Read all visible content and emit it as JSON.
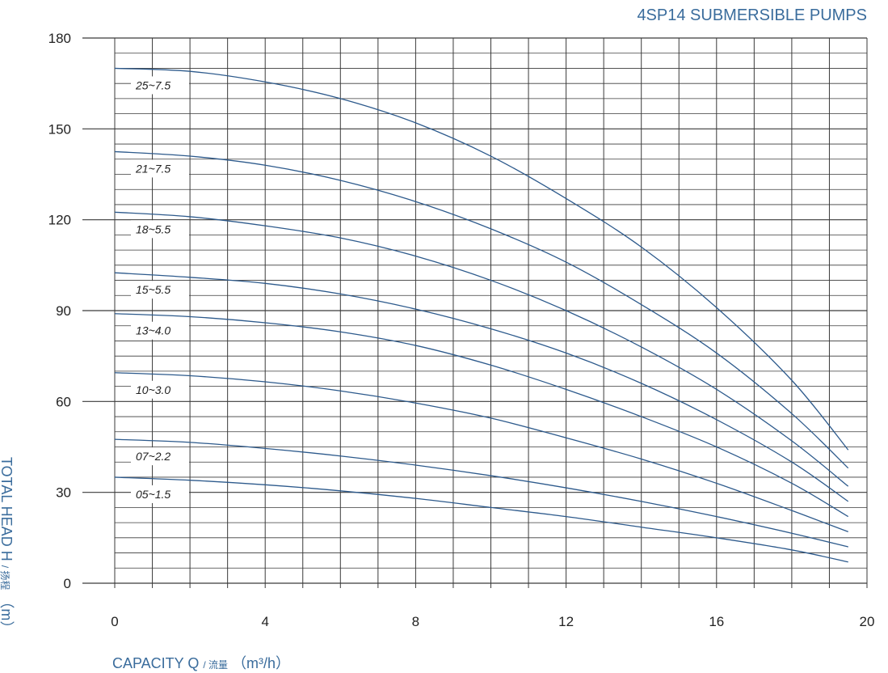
{
  "chart_data": {
    "type": "line",
    "title": "4SP14 SUBMERSIBLE PUMPS",
    "xlabel": "CAPACITY Q / 流量（m³/h）",
    "xlabel_parts": {
      "main": "CAPACITY Q",
      "cn": "/ 流量",
      "unit": "（m³/h）"
    },
    "ylabel": "TOTAL HEAD H / 扬程（m）",
    "ylabel_parts": {
      "main": "TOTAL HEAD H",
      "cn": "/ 扬程",
      "unit": "（m）"
    },
    "xlim": [
      0,
      20
    ],
    "ylim": [
      0,
      180
    ],
    "x_ticks": [
      0,
      4,
      8,
      12,
      16,
      20
    ],
    "y_ticks": [
      0,
      30,
      60,
      90,
      120,
      150,
      180
    ],
    "grid": true,
    "grid_x_step": 1,
    "grid_y_step": 5,
    "colors": {
      "curve": "#2d5a8c",
      "grid": "#3a3a3a",
      "title": "#3a6c9c"
    },
    "series": [
      {
        "name": "25~7.5",
        "x": [
          0,
          2,
          4,
          6,
          8,
          10,
          12,
          14,
          16,
          18,
          19.5
        ],
        "y": [
          170,
          169,
          165.5,
          160,
          152,
          141,
          127,
          111,
          91,
          67,
          44
        ]
      },
      {
        "name": "21~7.5",
        "x": [
          0,
          2,
          4,
          6,
          8,
          10,
          12,
          14,
          16,
          18,
          19.5
        ],
        "y": [
          142.5,
          141,
          138,
          133,
          126,
          117,
          106,
          92,
          76,
          56,
          38
        ]
      },
      {
        "name": "18~5.5",
        "x": [
          0,
          2,
          4,
          6,
          8,
          10,
          12,
          14,
          16,
          18,
          19.5
        ],
        "y": [
          122.5,
          121,
          118,
          114,
          108,
          100,
          90,
          78,
          64,
          47,
          32
        ]
      },
      {
        "name": "15~5.5",
        "x": [
          0,
          2,
          4,
          6,
          8,
          10,
          12,
          14,
          16,
          18,
          19.5
        ],
        "y": [
          102.5,
          101,
          99,
          95.5,
          90.5,
          84,
          76,
          66,
          54,
          40,
          27
        ]
      },
      {
        "name": "13~4.0",
        "x": [
          0,
          2,
          4,
          6,
          8,
          10,
          12,
          14,
          16,
          18,
          19.5
        ],
        "y": [
          89,
          88,
          86,
          83,
          78.5,
          72,
          64,
          55,
          45,
          33,
          22
        ]
      },
      {
        "name": "10~3.0",
        "x": [
          0,
          2,
          4,
          6,
          8,
          10,
          12,
          14,
          16,
          18,
          19.5
        ],
        "y": [
          69.5,
          68.5,
          66.5,
          63.5,
          59.5,
          54.5,
          48,
          41,
          33,
          24,
          17
        ]
      },
      {
        "name": "07~2.2",
        "x": [
          0,
          2,
          4,
          6,
          8,
          10,
          12,
          14,
          16,
          18,
          19.5
        ],
        "y": [
          47.5,
          46.5,
          44.5,
          42,
          39,
          35.5,
          31.5,
          27,
          22,
          16.5,
          12
        ]
      },
      {
        "name": "05~1.5",
        "x": [
          0,
          2,
          4,
          6,
          8,
          10,
          12,
          14,
          16,
          18,
          19.5
        ],
        "y": [
          35,
          34,
          32.5,
          30.5,
          28,
          25,
          22,
          18.5,
          15,
          11,
          7
        ]
      }
    ]
  }
}
